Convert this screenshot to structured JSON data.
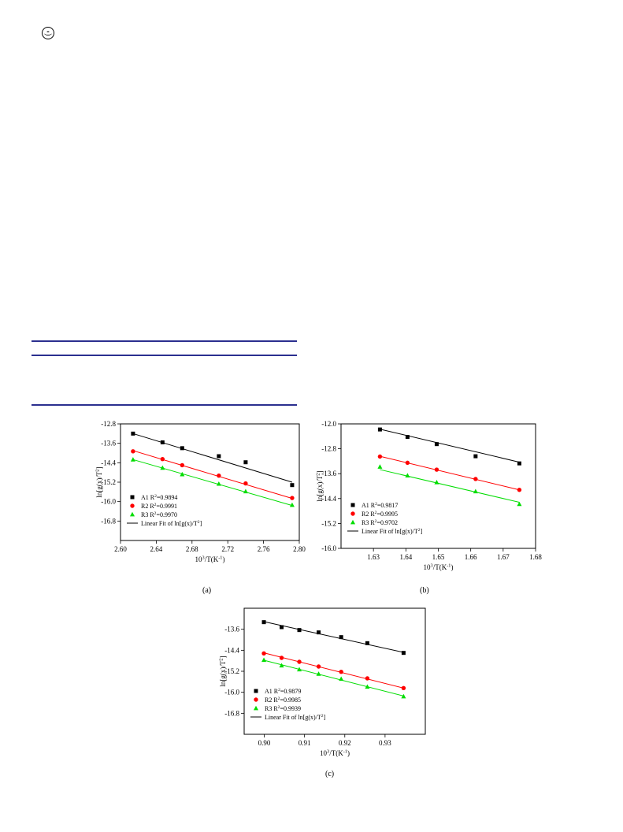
{
  "page": {
    "logo_icon": "publisher-logo-icon",
    "rule_color": "#2b2f8f"
  },
  "chart_data": [
    {
      "type": "scatter",
      "caption": "(a)",
      "xlabel": "10^3/T(K^-1)",
      "ylabel": "ln[g(x)/T^2]",
      "xlim": [
        2.6,
        2.8
      ],
      "ylim": [
        -17.6,
        -12.8
      ],
      "xticks": [
        "2.60",
        "2.64",
        "2.68",
        "2.72",
        "2.76",
        "2.80"
      ],
      "yticks": [
        "-12.8",
        "-13.6",
        "-14.4",
        "-15.2",
        "-16.0",
        "-16.8"
      ],
      "legend_position": "bottom-left",
      "fit_label": "Linear Fit of ln[g(x)/T^2]",
      "series": [
        {
          "name": "A1",
          "r2": "R^2=0.9894",
          "color": "#000000",
          "marker": "square",
          "x": [
            2.614,
            2.647,
            2.669,
            2.71,
            2.74,
            2.792
          ],
          "y": [
            -13.2,
            -13.56,
            -13.8,
            -14.13,
            -14.38,
            -15.32
          ],
          "fit": [
            [
              2.614,
              -13.2
            ],
            [
              2.792,
              -15.2
            ]
          ]
        },
        {
          "name": "R2",
          "r2": "R^2=0.9991",
          "color": "#ff0000",
          "marker": "circle",
          "x": [
            2.614,
            2.647,
            2.669,
            2.71,
            2.74,
            2.792
          ],
          "y": [
            -13.93,
            -14.25,
            -14.5,
            -14.93,
            -15.25,
            -15.85
          ],
          "fit": [
            [
              2.614,
              -13.9
            ],
            [
              2.792,
              -15.87
            ]
          ]
        },
        {
          "name": "R3",
          "r2": "R^2=0.9970",
          "color": "#00dd00",
          "marker": "triangle",
          "x": [
            2.614,
            2.647,
            2.669,
            2.71,
            2.74,
            2.792
          ],
          "y": [
            -14.27,
            -14.61,
            -14.88,
            -15.27,
            -15.58,
            -16.14
          ],
          "fit": [
            [
              2.614,
              -14.27
            ],
            [
              2.792,
              -16.16
            ]
          ]
        }
      ]
    },
    {
      "type": "scatter",
      "caption": "(b)",
      "xlabel": "10^3/T(K^-1)",
      "ylabel": "ln[g(x)/T^2]",
      "xlim": [
        1.62,
        1.68
      ],
      "ylim": [
        -16.0,
        -12.0
      ],
      "xticks": [
        "1.63",
        "1.64",
        "1.65",
        "1.66",
        "1.67",
        "1.68"
      ],
      "yticks": [
        "-12.0",
        "-12.8",
        "-13.6",
        "-14.4",
        "-15.2",
        "-16.0"
      ],
      "legend_position": "bottom-left",
      "fit_label": "Linear Fit of ln[g(x)/T^2]",
      "series": [
        {
          "name": "A1",
          "r2": "R^2=0.9817",
          "color": "#000000",
          "marker": "square",
          "x": [
            1.632,
            1.6405,
            1.6495,
            1.6615,
            1.675
          ],
          "y": [
            -12.18,
            -12.42,
            -12.65,
            -13.04,
            -13.27
          ],
          "fit": [
            [
              1.632,
              -12.17
            ],
            [
              1.675,
              -13.23
            ]
          ]
        },
        {
          "name": "R2",
          "r2": "R^2=0.9995",
          "color": "#ff0000",
          "marker": "circle",
          "x": [
            1.632,
            1.6405,
            1.6495,
            1.6615,
            1.675
          ],
          "y": [
            -13.05,
            -13.25,
            -13.47,
            -13.77,
            -14.12
          ],
          "fit": [
            [
              1.632,
              -13.04
            ],
            [
              1.675,
              -14.12
            ]
          ]
        },
        {
          "name": "R3",
          "r2": "R^2=0.9702",
          "color": "#00dd00",
          "marker": "triangle",
          "x": [
            1.632,
            1.6405,
            1.6495,
            1.6615,
            1.675
          ],
          "y": [
            -13.38,
            -13.66,
            -13.88,
            -14.17,
            -14.58
          ],
          "fit": [
            [
              1.632,
              -13.47
            ],
            [
              1.675,
              -14.52
            ]
          ]
        }
      ]
    },
    {
      "type": "scatter",
      "caption": "(c)",
      "xlabel": "10^3/T(K^-1)",
      "ylabel": "ln[g(x)/T^2]",
      "xlim": [
        0.895,
        0.94
      ],
      "ylim": [
        -17.6,
        -12.8
      ],
      "xticks": [
        "0.90",
        "0.91",
        "0.92",
        "0.93"
      ],
      "yticks": [
        "-13.6",
        "-14.4",
        "-15.2",
        "-16.0",
        "-16.8"
      ],
      "legend_position": "bottom-left",
      "fit_label": "Linear Fit of ln[g(x)/T^2]",
      "series": [
        {
          "name": "A1",
          "r2": "R^2=0.9879",
          "color": "#000000",
          "marker": "square",
          "x": [
            0.8999,
            0.9043,
            0.9087,
            0.9135,
            0.9191,
            0.9256,
            0.9346
          ],
          "y": [
            -13.33,
            -13.52,
            -13.63,
            -13.72,
            -13.9,
            -14.13,
            -14.5
          ],
          "fit": [
            [
              0.8999,
              -13.31
            ],
            [
              0.9346,
              -14.48
            ]
          ]
        },
        {
          "name": "R2",
          "r2": "R^2=0.9985",
          "color": "#ff0000",
          "marker": "circle",
          "x": [
            0.8999,
            0.9043,
            0.9087,
            0.9135,
            0.9191,
            0.9256,
            0.9346
          ],
          "y": [
            -14.52,
            -14.69,
            -14.84,
            -15.02,
            -15.22,
            -15.47,
            -15.84
          ],
          "fit": [
            [
              0.8999,
              -14.5
            ],
            [
              0.9346,
              -15.84
            ]
          ]
        },
        {
          "name": "R3",
          "r2": "R^2=0.9939",
          "color": "#00dd00",
          "marker": "triangle",
          "x": [
            0.8999,
            0.9043,
            0.9087,
            0.9135,
            0.9191,
            0.9256,
            0.9346
          ],
          "y": [
            -14.77,
            -14.98,
            -15.13,
            -15.3,
            -15.49,
            -15.79,
            -16.16
          ],
          "fit": [
            [
              0.8999,
              -14.78
            ],
            [
              0.9346,
              -16.14
            ]
          ]
        }
      ]
    }
  ]
}
